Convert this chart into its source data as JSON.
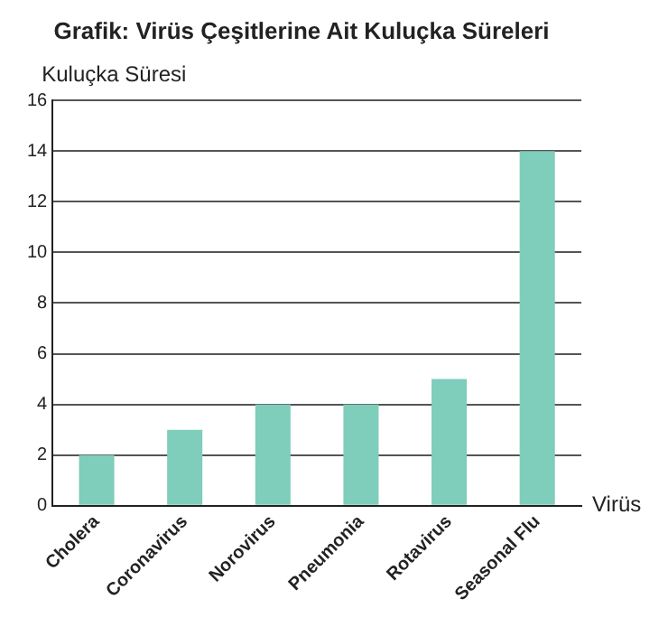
{
  "chart_data": {
    "type": "bar",
    "title": "Grafik: Virüs Çeşitlerine Ait Kuluçka Süreleri",
    "xlabel": "Virüs",
    "ylabel": "Kuluçka Süresi",
    "categories": [
      "Cholera",
      "Coronavirus",
      "Norovirus",
      "Pneumonia",
      "Rotavirus",
      "Seasonal Flu"
    ],
    "values": [
      2,
      3,
      4,
      4,
      5,
      14
    ],
    "color": "#7fcdbb",
    "ylim": [
      0,
      16
    ],
    "yticks": [
      0,
      2,
      4,
      6,
      8,
      10,
      12,
      14,
      16
    ],
    "grid": "y",
    "legend": false
  }
}
